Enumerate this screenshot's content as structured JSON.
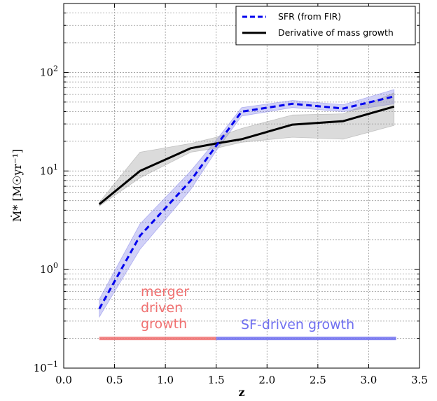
{
  "chart_data": {
    "type": "line",
    "title": "",
    "xlabel": "z",
    "ylabel": "Ṁ* [M☉yr⁻¹]",
    "xlim": [
      0.0,
      3.5
    ],
    "ylim": [
      0.1,
      500
    ],
    "yscale": "log",
    "grid": true,
    "legend_position": "top-right",
    "x_ticks": [
      {
        "value": 0.0,
        "label": "0.0"
      },
      {
        "value": 0.5,
        "label": "0.5"
      },
      {
        "value": 1.0,
        "label": "1.0"
      },
      {
        "value": 1.5,
        "label": "1.5"
      },
      {
        "value": 2.0,
        "label": "2.0"
      },
      {
        "value": 2.5,
        "label": "2.5"
      },
      {
        "value": 3.0,
        "label": "3.0"
      },
      {
        "value": 3.5,
        "label": "3.5"
      }
    ],
    "y_ticks": [
      {
        "value": 0.1,
        "base": "10",
        "exp": "−1"
      },
      {
        "value": 1,
        "base": "10",
        "exp": "0"
      },
      {
        "value": 10,
        "base": "10",
        "exp": "1"
      },
      {
        "value": 100,
        "base": "10",
        "exp": "2"
      }
    ],
    "series": [
      {
        "name": "SFR (from FIR)",
        "color": "#0000ee",
        "band_color": "#7b7be8",
        "style": "dashed",
        "x": [
          0.35,
          0.75,
          1.25,
          1.5,
          1.75,
          2.25,
          2.75,
          3.25
        ],
        "values": [
          0.4,
          2.2,
          8.0,
          18.0,
          40.0,
          48.0,
          43.0,
          57.0
        ],
        "lower": [
          0.33,
          1.6,
          6.5,
          16.0,
          36.0,
          44.0,
          40.0,
          48.0
        ],
        "upper": [
          0.5,
          2.9,
          10.0,
          20.5,
          44.0,
          52.0,
          47.0,
          67.0
        ]
      },
      {
        "name": "Derivative of mass growth",
        "color": "#000000",
        "band_color": "#999999",
        "style": "solid",
        "x": [
          0.35,
          0.75,
          1.25,
          1.5,
          1.75,
          2.25,
          2.75,
          3.25
        ],
        "values": [
          4.6,
          10.0,
          17.0,
          19.0,
          21.0,
          29.5,
          32.0,
          45.0
        ],
        "lower": [
          4.4,
          8.5,
          15.5,
          17.0,
          19.5,
          22.0,
          21.0,
          29.0
        ],
        "upper": [
          4.8,
          15.5,
          19.0,
          22.0,
          27.0,
          37.0,
          38.0,
          62.0
        ]
      }
    ],
    "regions": [
      {
        "x0": 0.35,
        "x1": 1.5,
        "y": 0.2,
        "color": "#f07070",
        "text": [
          "merger",
          "driven",
          "growth"
        ]
      },
      {
        "x0": 1.5,
        "x1": 3.27,
        "y": 0.2,
        "color": "#7070f0",
        "text": [
          "SF-driven growth"
        ]
      }
    ]
  }
}
